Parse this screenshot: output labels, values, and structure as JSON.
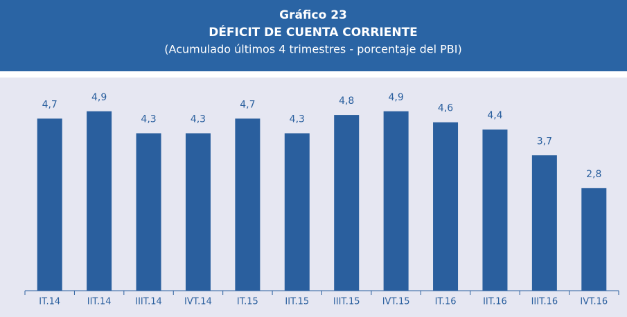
{
  "chart_data": {
    "type": "bar",
    "title": "Gráfico 23",
    "subtitle": "DÉFICIT DE CUENTA CORRIENTE",
    "note": "(Acumulado últimos 4 trimestres - porcentaje del PBI)",
    "categories": [
      "IT.14",
      "IIT.14",
      "IIIT.14",
      "IVT.14",
      "IT.15",
      "IIT.15",
      "IIIT.15",
      "IVT.15",
      "IT.16",
      "IIT.16",
      "IIIT.16",
      "IVT.16"
    ],
    "values": [
      4.7,
      4.9,
      4.3,
      4.3,
      4.7,
      4.3,
      4.8,
      4.9,
      4.6,
      4.4,
      3.7,
      2.8
    ],
    "value_labels": [
      "4,7",
      "4,9",
      "4,3",
      "4,3",
      "4,7",
      "4,3",
      "4,8",
      "4,9",
      "4,6",
      "4,4",
      "3,7",
      "2,8"
    ],
    "color": "#2a5f9e"
  }
}
